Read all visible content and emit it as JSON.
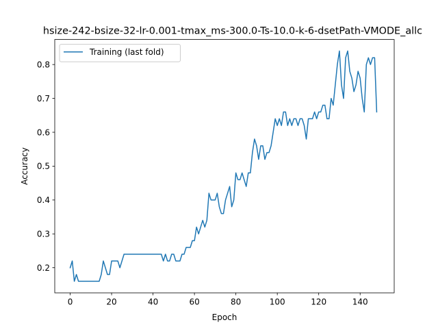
{
  "chart_data": {
    "type": "line",
    "title": "hsize-242-bsize-32-lr-0.001-tmax_ms-300.0-Ts-10.0-k-6-dsetPath-VMODE_allc",
    "xlabel": "Epoch",
    "ylabel": "Accuracy",
    "xlim": [
      -7.45,
      156.45
    ],
    "ylim": [
      0.126,
      0.874
    ],
    "xticks": [
      0,
      20,
      40,
      60,
      80,
      100,
      120,
      140
    ],
    "yticks": [
      0.2,
      0.3,
      0.4,
      0.5,
      0.6,
      0.7,
      0.8
    ],
    "grid": false,
    "legend_position": "upper-left",
    "series": [
      {
        "name": "Training (last fold)",
        "color": "#1f77b4",
        "x_start": 0,
        "x_step": 1,
        "values": [
          0.2,
          0.22,
          0.16,
          0.18,
          0.16,
          0.16,
          0.16,
          0.16,
          0.16,
          0.16,
          0.16,
          0.16,
          0.16,
          0.16,
          0.16,
          0.18,
          0.22,
          0.2,
          0.18,
          0.18,
          0.22,
          0.22,
          0.22,
          0.22,
          0.2,
          0.22,
          0.24,
          0.24,
          0.24,
          0.24,
          0.24,
          0.24,
          0.24,
          0.24,
          0.24,
          0.24,
          0.24,
          0.24,
          0.24,
          0.24,
          0.24,
          0.24,
          0.24,
          0.24,
          0.24,
          0.22,
          0.24,
          0.22,
          0.22,
          0.24,
          0.24,
          0.22,
          0.22,
          0.22,
          0.24,
          0.24,
          0.26,
          0.26,
          0.26,
          0.28,
          0.28,
          0.32,
          0.3,
          0.32,
          0.34,
          0.32,
          0.34,
          0.42,
          0.4,
          0.4,
          0.4,
          0.42,
          0.38,
          0.36,
          0.36,
          0.4,
          0.42,
          0.44,
          0.38,
          0.4,
          0.48,
          0.46,
          0.46,
          0.48,
          0.46,
          0.44,
          0.48,
          0.48,
          0.54,
          0.58,
          0.56,
          0.52,
          0.56,
          0.56,
          0.52,
          0.54,
          0.54,
          0.56,
          0.6,
          0.64,
          0.62,
          0.64,
          0.62,
          0.66,
          0.66,
          0.62,
          0.64,
          0.62,
          0.64,
          0.64,
          0.62,
          0.64,
          0.64,
          0.62,
          0.58,
          0.64,
          0.64,
          0.64,
          0.66,
          0.64,
          0.66,
          0.66,
          0.68,
          0.68,
          0.64,
          0.64,
          0.7,
          0.68,
          0.74,
          0.8,
          0.84,
          0.74,
          0.7,
          0.82,
          0.84,
          0.78,
          0.76,
          0.72,
          0.74,
          0.78,
          0.76,
          0.7,
          0.66,
          0.8,
          0.82,
          0.8,
          0.82,
          0.82,
          0.66
        ]
      }
    ]
  }
}
